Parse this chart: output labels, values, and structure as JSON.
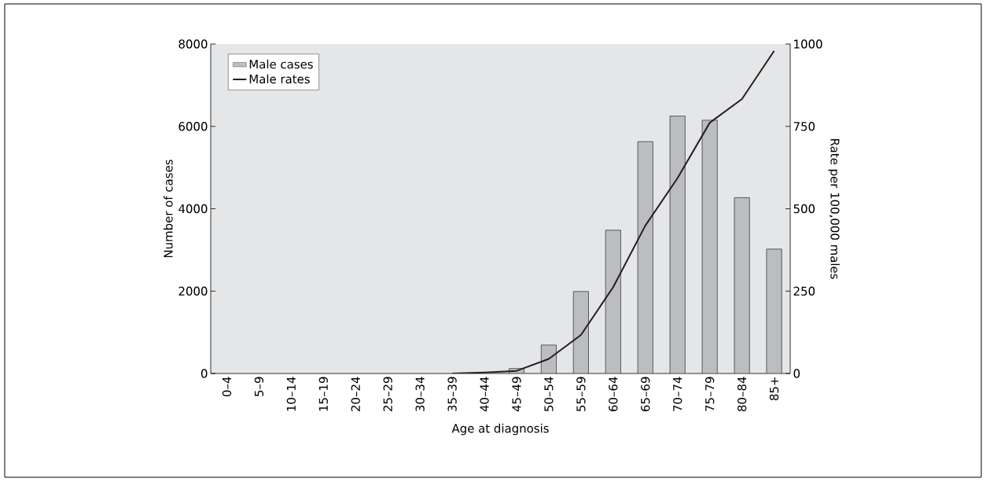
{
  "chart_data": {
    "type": "bar",
    "categories": [
      "0–4",
      "5–9",
      "10–14",
      "15–19",
      "20–24",
      "25–29",
      "30–34",
      "35–39",
      "40–44",
      "45–49",
      "50–54",
      "55–59",
      "60–64",
      "65–69",
      "70–74",
      "75–79",
      "80–84",
      "85+"
    ],
    "series": [
      {
        "name": "Male cases",
        "color": "#bcbdc1",
        "values": [
          null,
          null,
          null,
          null,
          null,
          null,
          null,
          null,
          null,
          120,
          690,
          1990,
          3480,
          5630,
          6250,
          6150,
          4270,
          3020
        ]
      },
      {
        "name": "Male rates",
        "type": "line",
        "axis": "y2",
        "color": "#231f20",
        "values": [
          null,
          null,
          null,
          null,
          null,
          null,
          null,
          0,
          3,
          8,
          44,
          117,
          262,
          449,
          593,
          761,
          833,
          979
        ]
      }
    ],
    "xlabel": "Age at diagnosis",
    "ylabel": "Number of cases",
    "y2label": "Rate per 100,000 males",
    "ylim": [
      0,
      8000
    ],
    "yticks": [
      0,
      2000,
      4000,
      6000,
      8000
    ],
    "y2lim": [
      0,
      1000
    ],
    "y2ticks": [
      0,
      250,
      500,
      750,
      1000
    ],
    "legend": "top left",
    "line_style": "solid"
  }
}
